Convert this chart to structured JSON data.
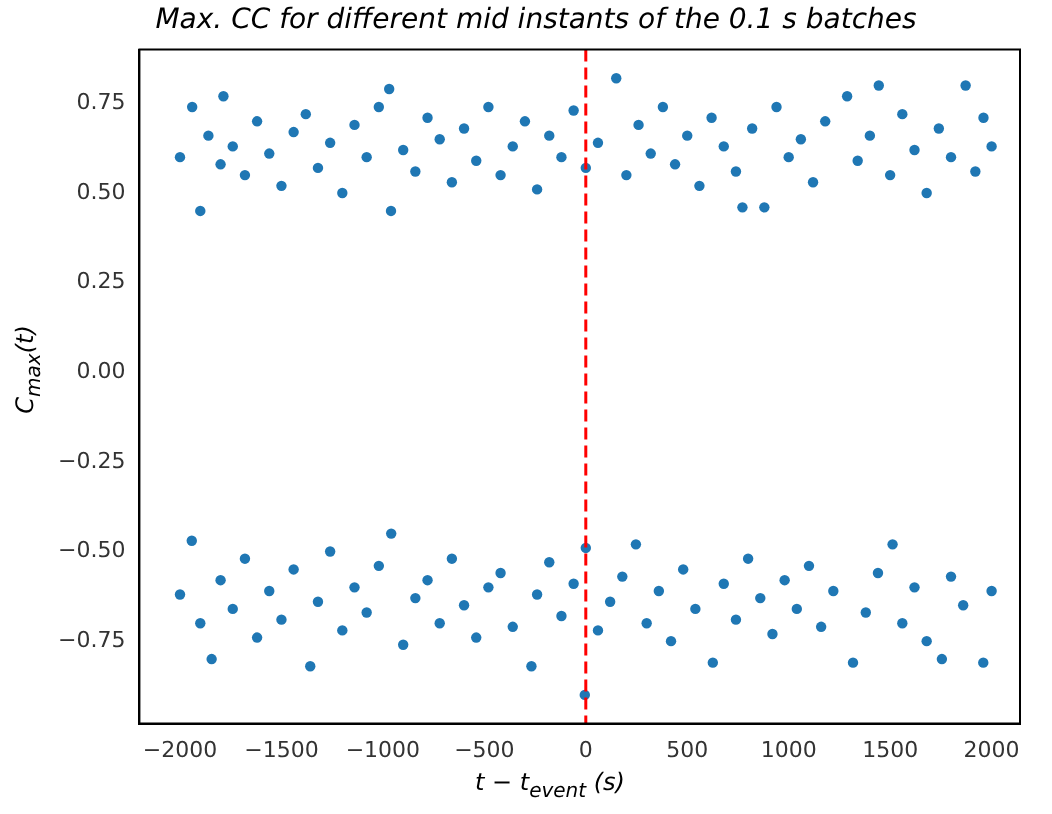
{
  "chart_data": {
    "type": "scatter",
    "title": "Max. CC for different mid instants of the 0.1 s batches",
    "xlabel": "t − t$_{event}$ (s)",
    "ylabel": "C$_{max}$(t)",
    "xlim": [
      -2200,
      2140
    ],
    "ylim": [
      -0.98,
      0.9
    ],
    "xticks": [
      {
        "value": -2000,
        "label": "−2000"
      },
      {
        "value": -1500,
        "label": "−1500"
      },
      {
        "value": -1000,
        "label": "−1000"
      },
      {
        "value": -500,
        "label": "−500"
      },
      0,
      500,
      1000,
      1500,
      2000
    ],
    "yticks": [
      {
        "value": -0.75,
        "label": "−0.75"
      },
      {
        "value": -0.5,
        "label": "−0.50"
      },
      {
        "value": -0.25,
        "label": "−0.25"
      },
      {
        "value": 0,
        "label": "0.00"
      },
      0.25,
      {
        "value": 0.5,
        "label": "0.50"
      },
      0.75
    ],
    "grid": false,
    "legend": false,
    "marker": "circle",
    "ref_lines": [
      {
        "axis": "x",
        "value": 0,
        "color": "#ff0000",
        "line_style": "dashed"
      }
    ],
    "series": [
      {
        "color": "#1f77b4",
        "x": [
          -2000,
          -1940,
          -1900,
          -1860,
          -1800,
          -1786,
          -1740,
          -1680,
          -1620,
          -1560,
          -1500,
          -1440,
          -1380,
          -1320,
          -1260,
          -1200,
          -1140,
          -1080,
          -1020,
          -969,
          -960,
          -900,
          -840,
          -780,
          -720,
          -660,
          -600,
          -540,
          -480,
          -420,
          -360,
          -300,
          -240,
          -180,
          -120,
          -60,
          0,
          60,
          150,
          200,
          260,
          320,
          380,
          440,
          500,
          560,
          620,
          680,
          740,
          772,
          820,
          880,
          940,
          1000,
          1060,
          1120,
          1180,
          1288,
          1340,
          1400,
          1444,
          1500,
          1560,
          1620,
          1680,
          1740,
          1800,
          1872,
          1920,
          1960,
          2000
        ],
        "values": [
          0.6,
          0.74,
          0.45,
          0.66,
          0.58,
          0.77,
          0.63,
          0.55,
          0.7,
          0.61,
          0.52,
          0.67,
          0.72,
          0.57,
          0.64,
          0.5,
          0.69,
          0.6,
          0.74,
          0.79,
          0.45,
          0.62,
          0.56,
          0.71,
          0.65,
          0.53,
          0.68,
          0.59,
          0.74,
          0.55,
          0.63,
          0.7,
          0.51,
          0.66,
          0.6,
          0.73,
          0.57,
          0.64,
          0.82,
          0.55,
          0.69,
          0.61,
          0.74,
          0.58,
          0.66,
          0.52,
          0.71,
          0.63,
          0.56,
          0.46,
          0.68,
          0.46,
          0.74,
          0.6,
          0.65,
          0.53,
          0.7,
          0.77,
          0.59,
          0.66,
          0.8,
          0.55,
          0.72,
          0.62,
          0.5,
          0.68,
          0.6,
          0.8,
          0.56,
          0.71,
          0.63
        ]
      },
      {
        "color": "#1f77b4",
        "x": [
          -2000,
          -1942,
          -1900,
          -1844,
          -1800,
          -1740,
          -1680,
          -1620,
          -1560,
          -1500,
          -1440,
          -1358,
          -1320,
          -1260,
          -1200,
          -1140,
          -1080,
          -1020,
          -959,
          -900,
          -840,
          -780,
          -720,
          -660,
          -600,
          -540,
          -480,
          -420,
          -360,
          -268,
          -240,
          -180,
          -120,
          -60,
          -5,
          0,
          60,
          120,
          180,
          247,
          300,
          360,
          420,
          480,
          540,
          626,
          680,
          740,
          800,
          860,
          920,
          980,
          1040,
          1100,
          1160,
          1220,
          1317,
          1380,
          1440,
          1512,
          1560,
          1620,
          1680,
          1755,
          1800,
          1860,
          1959,
          2000
        ],
        "values": [
          -0.62,
          -0.47,
          -0.7,
          -0.8,
          -0.58,
          -0.66,
          -0.52,
          -0.74,
          -0.61,
          -0.69,
          -0.55,
          -0.82,
          -0.64,
          -0.5,
          -0.72,
          -0.6,
          -0.67,
          -0.54,
          -0.45,
          -0.76,
          -0.63,
          -0.58,
          -0.7,
          -0.52,
          -0.65,
          -0.74,
          -0.6,
          -0.56,
          -0.71,
          -0.82,
          -0.62,
          -0.53,
          -0.68,
          -0.59,
          -0.9,
          -0.49,
          -0.72,
          -0.64,
          -0.57,
          -0.48,
          -0.7,
          -0.61,
          -0.75,
          -0.55,
          -0.66,
          -0.81,
          -0.59,
          -0.69,
          -0.52,
          -0.63,
          -0.73,
          -0.58,
          -0.66,
          -0.54,
          -0.71,
          -0.61,
          -0.81,
          -0.67,
          -0.56,
          -0.48,
          -0.7,
          -0.6,
          -0.75,
          -0.8,
          -0.57,
          -0.65,
          -0.81,
          -0.61
        ]
      }
    ]
  }
}
